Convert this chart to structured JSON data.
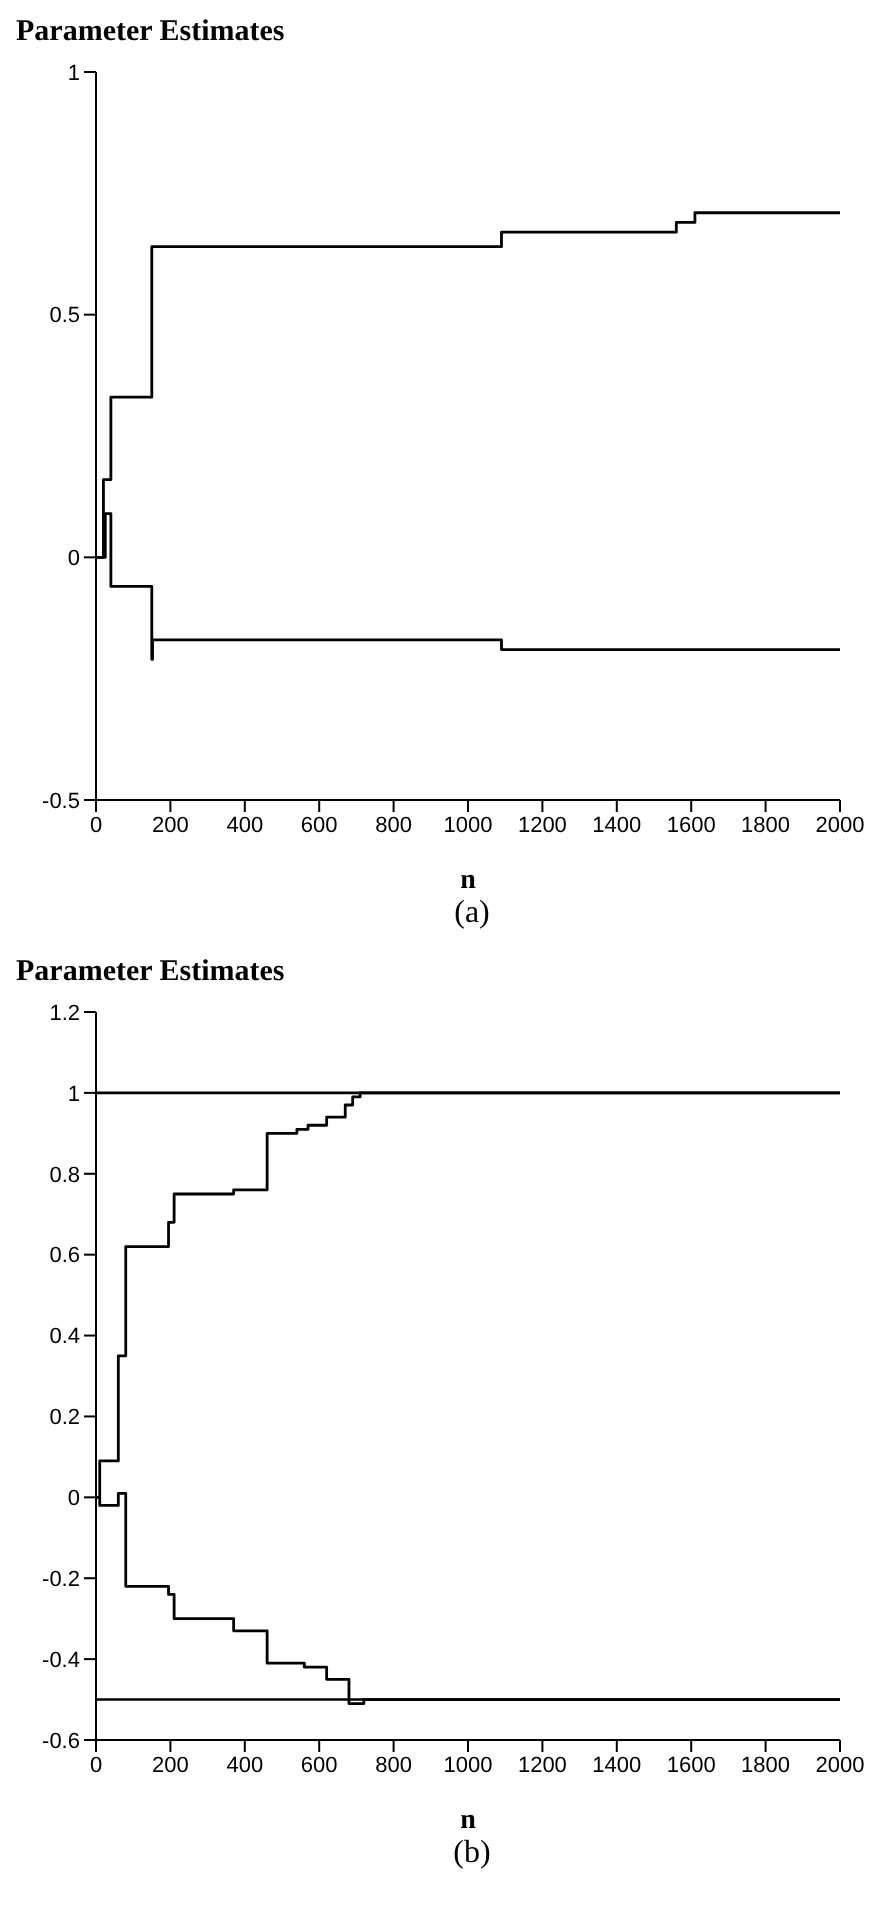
{
  "chart_data": [
    {
      "type": "step",
      "title": "Parameter Estimates",
      "xlabel": "n",
      "annotations": [
        "(a)"
      ],
      "xlim": [
        0,
        2000
      ],
      "xticks": [
        0,
        200,
        400,
        600,
        800,
        1000,
        1200,
        1400,
        1600,
        1800,
        2000
      ],
      "ylim": [
        -0.5,
        1
      ],
      "yticks": [
        -0.5,
        0,
        0.5,
        1
      ],
      "series": [
        {
          "color": "#000000",
          "x": [
            0,
            20,
            40,
            150,
            1090,
            1560,
            1610,
            2000
          ],
          "values": [
            0,
            0.16,
            0.33,
            0.64,
            0.67,
            0.69,
            0.71,
            0.71
          ]
        },
        {
          "color": "#000000",
          "x": [
            0,
            25,
            40,
            150,
            152,
            1090,
            2000
          ],
          "values": [
            0,
            0.09,
            -0.06,
            -0.21,
            -0.17,
            -0.19,
            -0.19
          ]
        }
      ]
    },
    {
      "type": "step",
      "title": "Parameter Estimates",
      "xlabel": "n",
      "annotations": [
        "(b)"
      ],
      "xlim": [
        0,
        2000
      ],
      "xticks": [
        0,
        200,
        400,
        600,
        800,
        1000,
        1200,
        1400,
        1600,
        1800,
        2000
      ],
      "ylim": [
        -0.6,
        1.2
      ],
      "yticks": [
        -0.6,
        -0.4,
        -0.2,
        0,
        0.2,
        0.4,
        0.6,
        0.8,
        1,
        1.2
      ],
      "ref_lines": [
        {
          "axis": "y",
          "value": 1,
          "color": "#000000"
        },
        {
          "axis": "y",
          "value": -0.5,
          "color": "#000000"
        }
      ],
      "series": [
        {
          "color": "#000000",
          "x": [
            0,
            10,
            60,
            80,
            195,
            210,
            370,
            460,
            540,
            570,
            620,
            670,
            690,
            710,
            2000
          ],
          "values": [
            0,
            0.09,
            0.35,
            0.62,
            0.68,
            0.75,
            0.76,
            0.9,
            0.91,
            0.92,
            0.94,
            0.97,
            0.99,
            1,
            1
          ]
        },
        {
          "color": "#000000",
          "x": [
            0,
            10,
            60,
            80,
            195,
            210,
            370,
            460,
            560,
            620,
            680,
            720,
            2000
          ],
          "values": [
            0,
            -0.02,
            0.01,
            -0.22,
            -0.24,
            -0.3,
            -0.33,
            -0.41,
            -0.42,
            -0.45,
            -0.51,
            -0.5,
            -0.5
          ]
        }
      ]
    }
  ]
}
